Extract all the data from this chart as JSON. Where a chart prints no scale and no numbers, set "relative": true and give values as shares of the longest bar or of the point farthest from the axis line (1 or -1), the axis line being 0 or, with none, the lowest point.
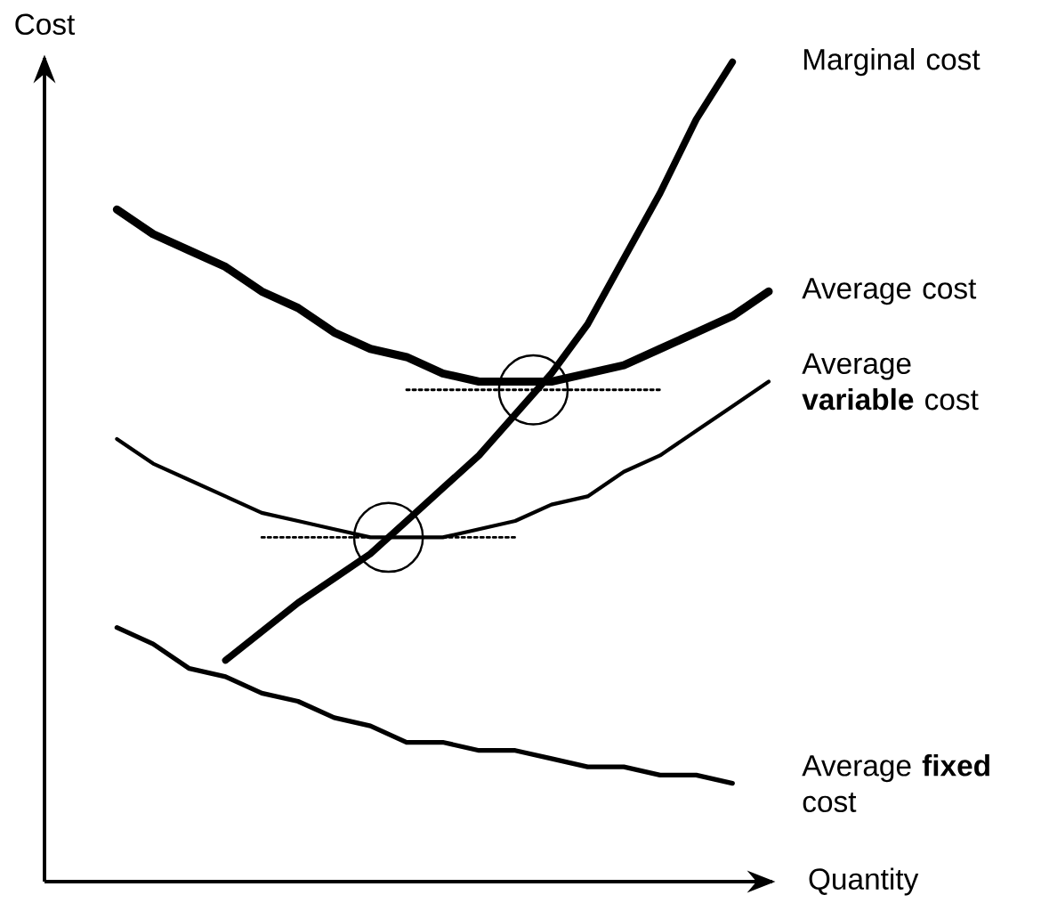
{
  "chart_data": {
    "type": "line",
    "relative": true,
    "xlabel": "Quantity",
    "ylabel": "Cost",
    "marker": "none",
    "line_style": "solid",
    "categories": [
      null,
      null,
      null,
      null,
      null,
      null,
      null,
      null,
      null,
      null,
      null,
      null,
      null,
      null,
      null,
      null,
      null,
      null,
      null,
      null,
      null
    ],
    "series": [
      {
        "name": "Marginal cost",
        "color": "#000000",
        "values": [
          null,
          null,
          null,
          null,
          null,
          0.27,
          0.305,
          0.34,
          0.37,
          0.4,
          0.44,
          0.48,
          0.52,
          0.57,
          0.62,
          0.68,
          0.76,
          0.84,
          0.93,
          1,
          null
        ]
      },
      {
        "name": "Average cost",
        "color": "#000000",
        "values": [
          null,
          null,
          0.82,
          0.79,
          0.77,
          0.75,
          0.72,
          0.7,
          0.67,
          0.65,
          0.64,
          0.62,
          0.61,
          0.61,
          0.61,
          0.62,
          0.63,
          0.65,
          0.67,
          0.69,
          0.72
        ]
      },
      {
        "name": "Average **variable** cost",
        "color": "#000000",
        "values": [
          null,
          null,
          0.54,
          0.51,
          0.49,
          0.47,
          0.45,
          0.44,
          0.43,
          0.42,
          0.42,
          0.42,
          0.43,
          0.44,
          0.46,
          0.47,
          0.5,
          0.52,
          0.55,
          0.58,
          0.61
        ]
      },
      {
        "name": "Average **fixed** cost",
        "color": "#000000",
        "values": [
          null,
          null,
          0.31,
          0.29,
          0.26,
          0.25,
          0.23,
          0.22,
          0.2,
          0.19,
          0.17,
          0.17,
          0.16,
          0.16,
          0.15,
          0.14,
          0.14,
          0.13,
          0.13,
          0.12,
          null
        ]
      },
      {
        "line_style": "dotted",
        "color": "#000000",
        "values": [
          null,
          null,
          null,
          null,
          null,
          null,
          null,
          null,
          null,
          null,
          0.6,
          0.6,
          0.6,
          0.6,
          0.6,
          0.6,
          0.6,
          0.6,
          null,
          null,
          null
        ]
      },
      {
        "line_style": "dotted",
        "color": "#000000",
        "values": [
          null,
          null,
          null,
          null,
          null,
          null,
          0.42,
          0.42,
          0.42,
          0.42,
          0.42,
          0.42,
          0.42,
          0.42,
          null,
          null,
          null,
          null,
          null,
          null,
          null
        ]
      }
    ]
  }
}
